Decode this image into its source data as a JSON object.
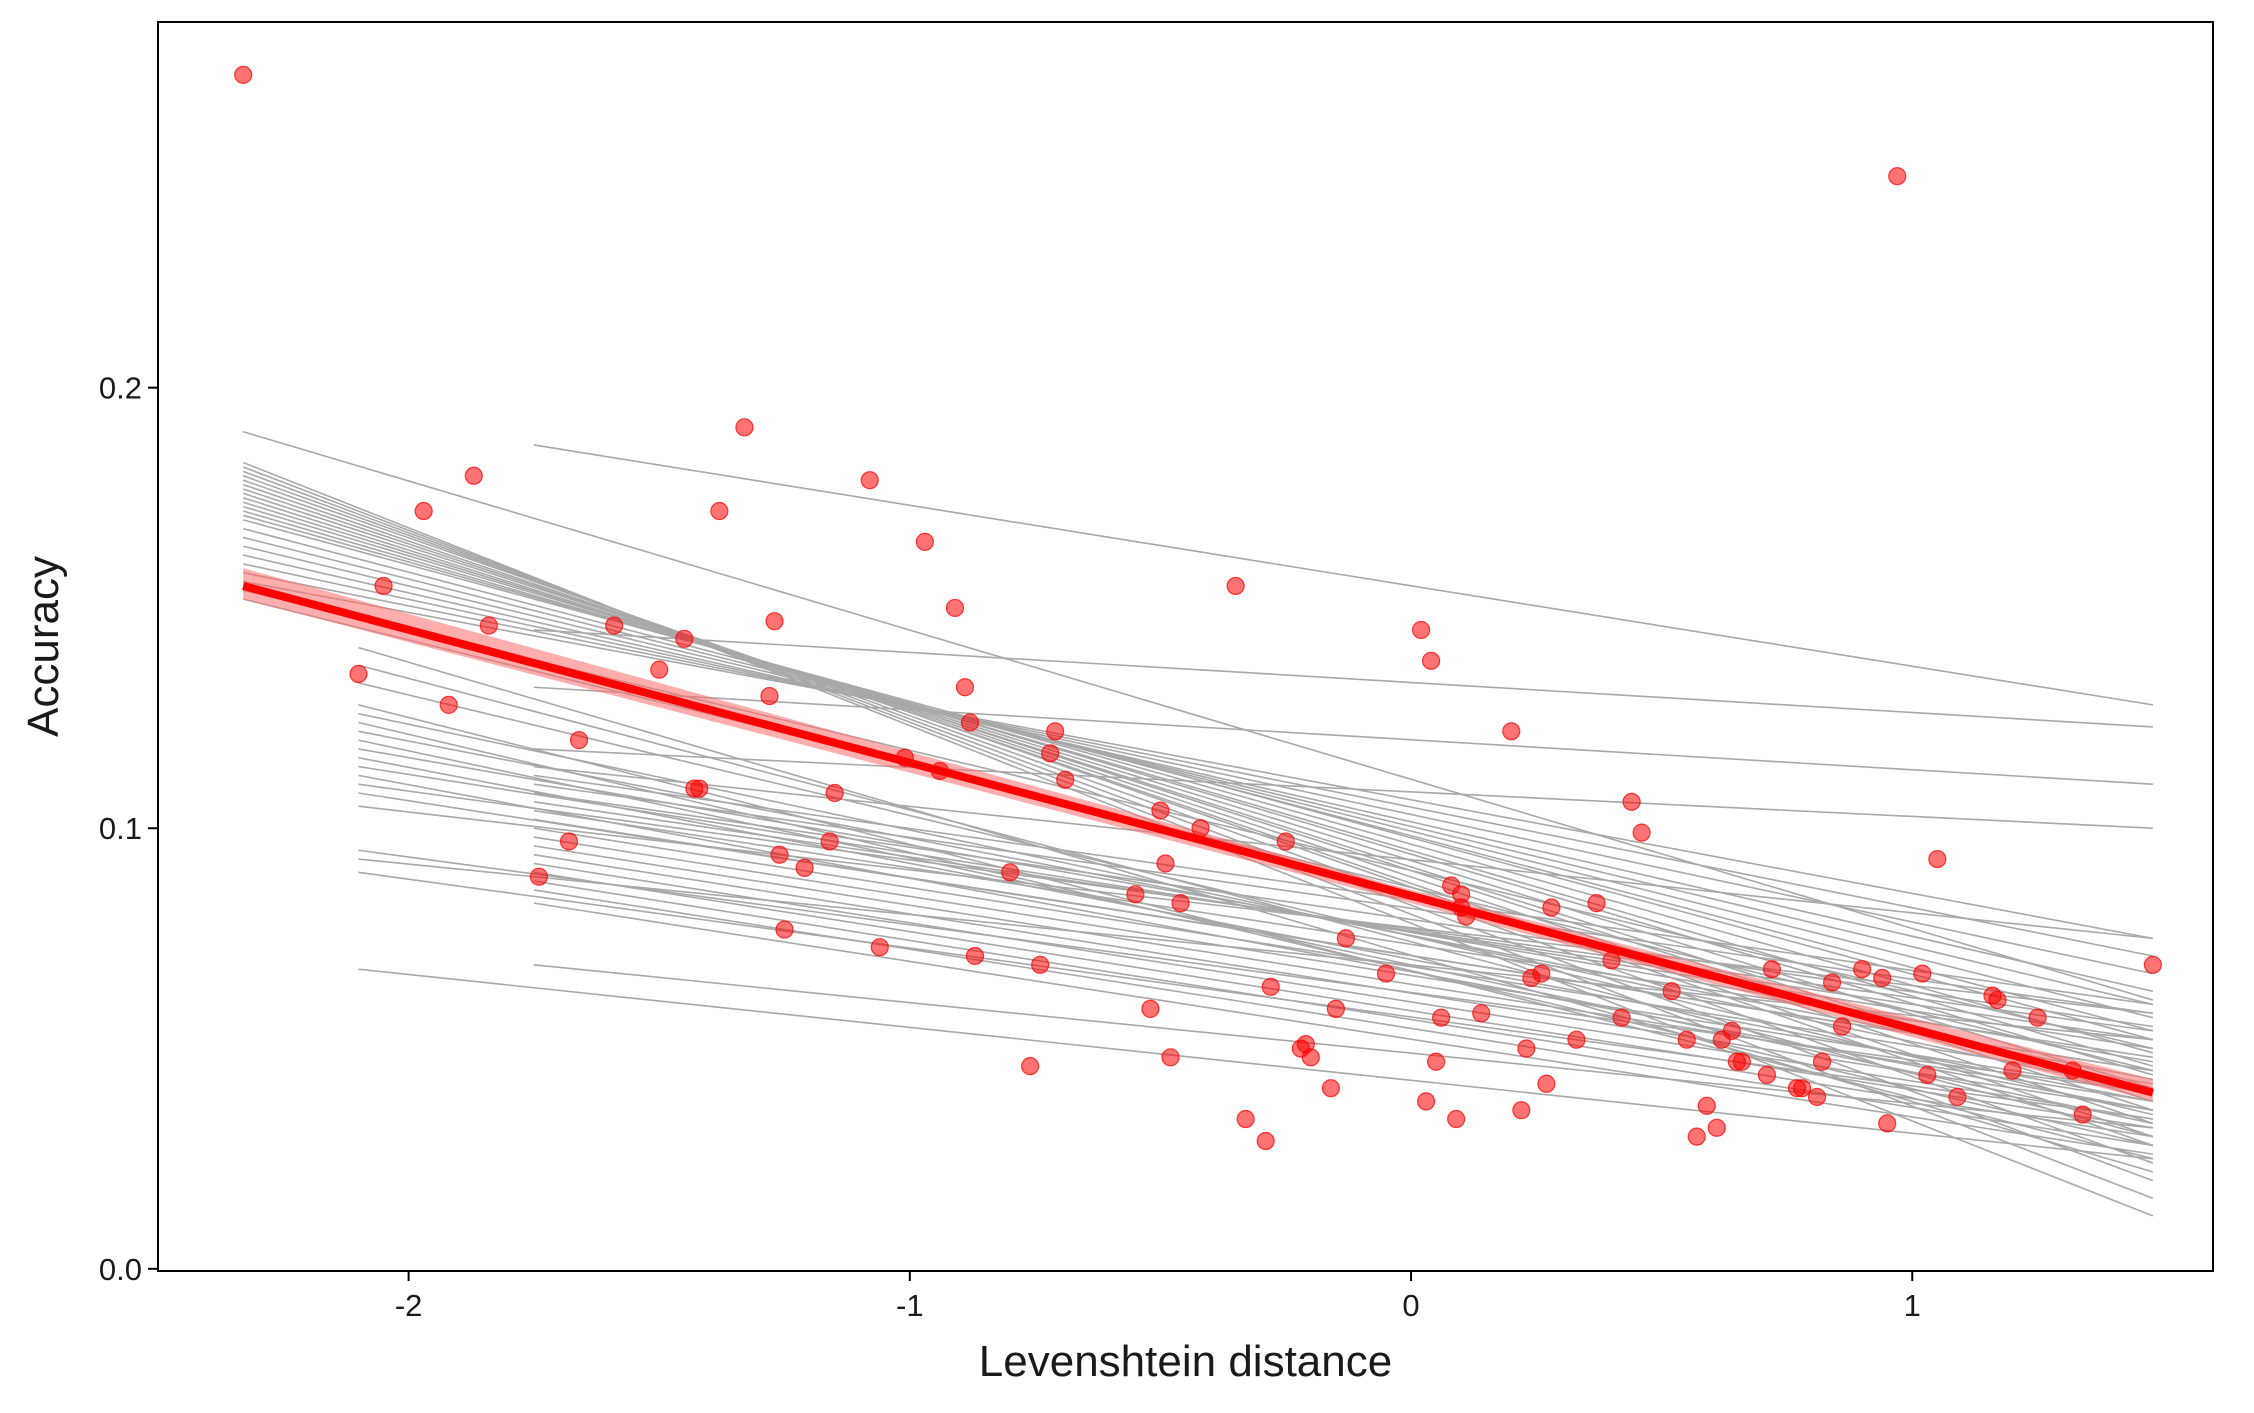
{
  "chart_data": {
    "type": "scatter",
    "title": "",
    "xlabel": "Levenshtein distance",
    "ylabel": "Accuracy",
    "xlim": [
      -2.5,
      1.6
    ],
    "ylim": [
      -0.0005,
      0.283
    ],
    "x_ticks": [
      -2,
      -1,
      0,
      1
    ],
    "x_tick_labels": [
      "-2",
      "-1",
      "0",
      "1"
    ],
    "y_ticks": [
      0.0,
      0.1,
      0.2
    ],
    "y_tick_labels": [
      "0.0",
      "0.1",
      "0.2"
    ],
    "grid": false,
    "legend": "none",
    "colors": {
      "points": "#ff0000",
      "fit_line": "#ff0000",
      "fit_ribbon": "#ff6a6a",
      "random_lines": "#a8a8a8",
      "panel_border": "#000000"
    },
    "fit_line": {
      "x": [
        -2.33,
        1.48
      ],
      "y": [
        0.155,
        0.04
      ]
    },
    "fit_ribbon": {
      "x": [
        -2.33,
        0,
        1.48
      ],
      "lower": [
        0.152,
        0.083,
        0.038
      ],
      "upper": [
        0.159,
        0.086,
        0.043
      ]
    },
    "random_slopes": [
      {
        "x": [
          -2.33,
          1.48
        ],
        "y": [
          0.19,
          0.061
        ]
      },
      {
        "x": [
          -2.33,
          1.48
        ],
        "y": [
          0.183,
          0.012
        ]
      },
      {
        "x": [
          -2.33,
          1.48
        ],
        "y": [
          0.182,
          0.016
        ]
      },
      {
        "x": [
          -2.33,
          1.48
        ],
        "y": [
          0.181,
          0.02
        ]
      },
      {
        "x": [
          -2.33,
          1.48
        ],
        "y": [
          0.18,
          0.024
        ]
      },
      {
        "x": [
          -2.33,
          1.48
        ],
        "y": [
          0.179,
          0.028
        ]
      },
      {
        "x": [
          -2.33,
          1.48
        ],
        "y": [
          0.178,
          0.03
        ]
      },
      {
        "x": [
          -2.33,
          1.48
        ],
        "y": [
          0.177,
          0.033
        ]
      },
      {
        "x": [
          -2.33,
          1.48
        ],
        "y": [
          0.176,
          0.036
        ]
      },
      {
        "x": [
          -2.33,
          1.48
        ],
        "y": [
          0.175,
          0.038
        ]
      },
      {
        "x": [
          -2.33,
          1.48
        ],
        "y": [
          0.174,
          0.041
        ]
      },
      {
        "x": [
          -2.33,
          1.48
        ],
        "y": [
          0.173,
          0.044
        ]
      },
      {
        "x": [
          -2.33,
          1.48
        ],
        "y": [
          0.172,
          0.046
        ]
      },
      {
        "x": [
          -2.33,
          1.48
        ],
        "y": [
          0.171,
          0.049
        ]
      },
      {
        "x": [
          -2.33,
          1.48
        ],
        "y": [
          0.17,
          0.052
        ]
      },
      {
        "x": [
          -2.33,
          1.48
        ],
        "y": [
          0.168,
          0.054
        ]
      },
      {
        "x": [
          -2.33,
          1.48
        ],
        "y": [
          0.166,
          0.057
        ]
      },
      {
        "x": [
          -2.33,
          1.48
        ],
        "y": [
          0.164,
          0.06
        ]
      },
      {
        "x": [
          -2.33,
          1.48
        ],
        "y": [
          0.162,
          0.063
        ]
      },
      {
        "x": [
          -2.33,
          1.48
        ],
        "y": [
          0.16,
          0.067
        ]
      },
      {
        "x": [
          -2.33,
          1.48
        ],
        "y": [
          0.158,
          0.071
        ]
      },
      {
        "x": [
          -2.33,
          1.48
        ],
        "y": [
          0.156,
          0.075
        ]
      },
      {
        "x": [
          -2.33,
          1.48
        ],
        "y": [
          0.154,
          0.05
        ]
      },
      {
        "x": [
          -2.33,
          1.48
        ],
        "y": [
          0.152,
          0.045
        ]
      },
      {
        "x": [
          -2.1,
          1.48
        ],
        "y": [
          0.141,
          0.022
        ]
      },
      {
        "x": [
          -2.1,
          1.48
        ],
        "y": [
          0.137,
          0.03
        ]
      },
      {
        "x": [
          -2.1,
          1.48
        ],
        "y": [
          0.133,
          0.035
        ]
      },
      {
        "x": [
          -2.1,
          1.48
        ],
        "y": [
          0.128,
          0.025
        ]
      },
      {
        "x": [
          -2.1,
          1.48
        ],
        "y": [
          0.126,
          0.04
        ]
      },
      {
        "x": [
          -2.1,
          1.48
        ],
        "y": [
          0.124,
          0.028
        ]
      },
      {
        "x": [
          -2.1,
          1.48
        ],
        "y": [
          0.122,
          0.043
        ]
      },
      {
        "x": [
          -2.1,
          1.48
        ],
        "y": [
          0.12,
          0.033
        ]
      },
      {
        "x": [
          -2.1,
          1.48
        ],
        "y": [
          0.118,
          0.047
        ]
      },
      {
        "x": [
          -2.1,
          1.48
        ],
        "y": [
          0.116,
          0.038
        ]
      },
      {
        "x": [
          -2.1,
          1.48
        ],
        "y": [
          0.114,
          0.05
        ]
      },
      {
        "x": [
          -2.1,
          1.48
        ],
        "y": [
          0.112,
          0.036
        ]
      },
      {
        "x": [
          -2.1,
          1.48
        ],
        "y": [
          0.11,
          0.054
        ]
      },
      {
        "x": [
          -2.1,
          1.48
        ],
        "y": [
          0.108,
          0.045
        ]
      },
      {
        "x": [
          -2.1,
          1.48
        ],
        "y": [
          0.105,
          0.058
        ]
      },
      {
        "x": [
          -2.1,
          1.48
        ],
        "y": [
          0.095,
          0.04
        ]
      },
      {
        "x": [
          -2.1,
          1.48
        ],
        "y": [
          0.093,
          0.052
        ]
      },
      {
        "x": [
          -2.1,
          1.48
        ],
        "y": [
          0.09,
          0.034
        ]
      },
      {
        "x": [
          -2.1,
          1.48
        ],
        "y": [
          0.068,
          0.025
        ]
      },
      {
        "x": [
          -1.75,
          1.48
        ],
        "y": [
          0.187,
          0.128
        ]
      },
      {
        "x": [
          -1.75,
          1.48
        ],
        "y": [
          0.145,
          0.123
        ]
      },
      {
        "x": [
          -1.75,
          1.48
        ],
        "y": [
          0.132,
          0.11
        ]
      },
      {
        "x": [
          -1.75,
          1.48
        ],
        "y": [
          0.118,
          0.1
        ]
      },
      {
        "x": [
          -1.75,
          1.48
        ],
        "y": [
          0.114,
          0.075
        ]
      },
      {
        "x": [
          -1.75,
          1.48
        ],
        "y": [
          0.112,
          0.06
        ]
      },
      {
        "x": [
          -1.75,
          1.48
        ],
        "y": [
          0.11,
          0.058
        ]
      },
      {
        "x": [
          -1.75,
          1.48
        ],
        "y": [
          0.108,
          0.055
        ]
      },
      {
        "x": [
          -1.75,
          1.48
        ],
        "y": [
          0.106,
          0.052
        ]
      },
      {
        "x": [
          -1.75,
          1.48
        ],
        "y": [
          0.104,
          0.048
        ]
      },
      {
        "x": [
          -1.75,
          1.48
        ],
        "y": [
          0.102,
          0.045
        ]
      },
      {
        "x": [
          -1.75,
          1.48
        ],
        "y": [
          0.1,
          0.042
        ]
      },
      {
        "x": [
          -1.75,
          1.48
        ],
        "y": [
          0.098,
          0.04
        ]
      },
      {
        "x": [
          -1.75,
          1.48
        ],
        "y": [
          0.096,
          0.038
        ]
      },
      {
        "x": [
          -1.75,
          1.48
        ],
        "y": [
          0.094,
          0.036
        ]
      },
      {
        "x": [
          -1.75,
          1.48
        ],
        "y": [
          0.092,
          0.034
        ]
      },
      {
        "x": [
          -1.75,
          1.48
        ],
        "y": [
          0.09,
          0.032
        ]
      },
      {
        "x": [
          -1.75,
          1.48
        ],
        "y": [
          0.088,
          0.03
        ]
      },
      {
        "x": [
          -1.75,
          1.48
        ],
        "y": [
          0.086,
          0.028
        ]
      },
      {
        "x": [
          -1.75,
          1.48
        ],
        "y": [
          0.083,
          0.026
        ]
      },
      {
        "x": [
          -1.75,
          1.48
        ],
        "y": [
          0.069,
          0.032
        ]
      }
    ],
    "points": {
      "x": [
        -2.33,
        -2.1,
        -2.05,
        -1.97,
        -1.92,
        -1.87,
        -1.84,
        -1.74,
        -1.68,
        -1.66,
        -1.59,
        -1.5,
        -1.45,
        -1.43,
        -1.42,
        -1.38,
        -1.33,
        -1.28,
        -1.27,
        -1.26,
        -1.25,
        -1.21,
        -1.16,
        -1.15,
        -1.08,
        -1.06,
        -1.01,
        -0.97,
        -0.94,
        -0.91,
        -0.89,
        -0.88,
        -0.87,
        -0.8,
        -0.76,
        -0.74,
        -0.72,
        -0.71,
        -0.69,
        -0.55,
        -0.52,
        -0.5,
        -0.49,
        -0.48,
        -0.46,
        -0.42,
        -0.35,
        -0.33,
        -0.29,
        -0.28,
        -0.25,
        -0.22,
        -0.21,
        -0.2,
        -0.16,
        -0.15,
        -0.13,
        -0.05,
        0.02,
        0.03,
        0.04,
        0.05,
        0.06,
        0.08,
        0.09,
        0.1,
        0.1,
        0.11,
        0.14,
        0.2,
        0.22,
        0.23,
        0.24,
        0.26,
        0.27,
        0.28,
        0.33,
        0.37,
        0.4,
        0.42,
        0.44,
        0.46,
        0.52,
        0.55,
        0.57,
        0.59,
        0.61,
        0.62,
        0.64,
        0.65,
        0.66,
        0.71,
        0.72,
        0.77,
        0.78,
        0.81,
        0.82,
        0.84,
        0.86,
        0.9,
        0.94,
        0.95,
        0.97,
        1.02,
        1.03,
        1.05,
        1.09,
        1.16,
        1.17,
        1.2,
        1.25,
        1.32,
        1.34,
        1.48
      ],
      "y": [
        0.271,
        0.135,
        0.155,
        0.172,
        0.128,
        0.18,
        0.146,
        0.089,
        0.097,
        0.12,
        0.146,
        0.136,
        0.143,
        0.109,
        0.109,
        0.172,
        0.191,
        0.13,
        0.147,
        0.094,
        0.077,
        0.091,
        0.097,
        0.108,
        0.179,
        0.073,
        0.116,
        0.165,
        0.113,
        0.15,
        0.132,
        0.124,
        0.071,
        0.09,
        0.046,
        0.069,
        0.117,
        0.122,
        0.111,
        0.085,
        0.059,
        0.104,
        0.092,
        0.048,
        0.083,
        0.1,
        0.155,
        0.034,
        0.029,
        0.064,
        0.097,
        0.05,
        0.051,
        0.048,
        0.041,
        0.059,
        0.075,
        0.067,
        0.145,
        0.038,
        0.138,
        0.047,
        0.057,
        0.087,
        0.034,
        0.085,
        0.082,
        0.08,
        0.058,
        0.122,
        0.036,
        0.05,
        0.066,
        0.067,
        0.042,
        0.082,
        0.052,
        0.083,
        0.07,
        0.057,
        0.106,
        0.099,
        0.063,
        0.052,
        0.03,
        0.037,
        0.032,
        0.052,
        0.054,
        0.047,
        0.047,
        0.044,
        0.068,
        0.041,
        0.041,
        0.039,
        0.047,
        0.065,
        0.055,
        0.068,
        0.066,
        0.033,
        0.248,
        0.067,
        0.044,
        0.093,
        0.039,
        0.062,
        0.061,
        0.045,
        0.057,
        0.045,
        0.035,
        0.069
      ]
    }
  }
}
